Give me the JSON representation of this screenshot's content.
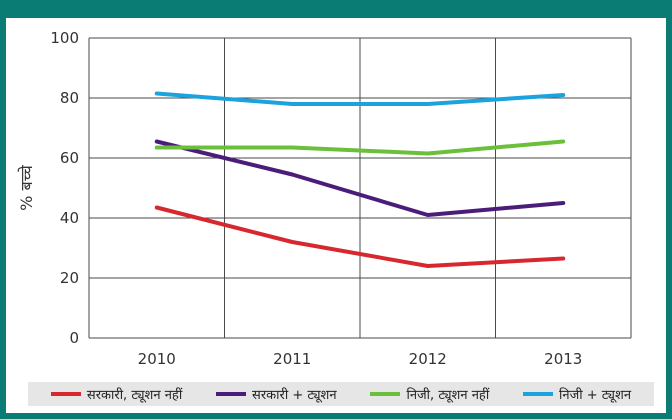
{
  "chart_data": {
    "type": "line",
    "categories": [
      "2010",
      "2011",
      "2012",
      "2013"
    ],
    "ylabel": "% बच्चे",
    "ylim": [
      0,
      100
    ],
    "yticks": [
      0,
      20,
      40,
      60,
      80,
      100
    ],
    "grid": true,
    "legend_position": "bottom",
    "series": [
      {
        "name": "सरकारी, ट्यूशन नहीं",
        "color": "#d7282f",
        "values": [
          43.5,
          32,
          24,
          26.5
        ]
      },
      {
        "name": "सरकारी + ट्यूशन",
        "color": "#4b1d7a",
        "values": [
          65.5,
          54.5,
          41,
          45
        ]
      },
      {
        "name": "निजी, ट्यूशन नहीं",
        "color": "#6cbf3a",
        "values": [
          63.5,
          63.5,
          61.5,
          65.5
        ]
      },
      {
        "name": "निजी + ट्यूशन",
        "color": "#1ba3df",
        "values": [
          81.5,
          78,
          78,
          81
        ]
      }
    ]
  }
}
